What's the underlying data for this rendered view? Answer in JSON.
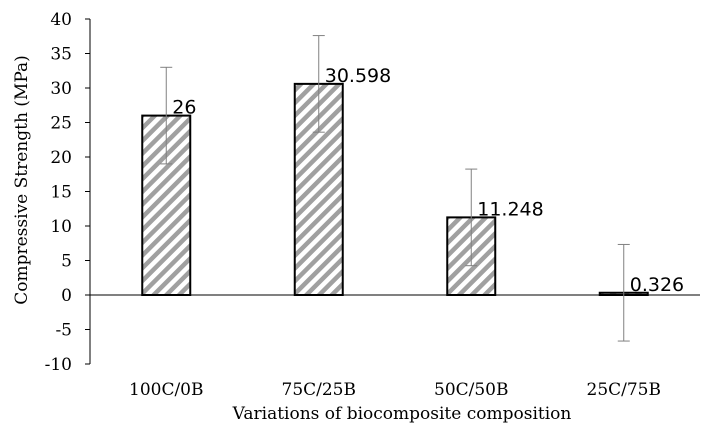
{
  "chart_data": {
    "type": "bar",
    "xlabel": "Variations of biocomposite composition",
    "ylabel": "Compressive Strength (MPa)",
    "ylim": [
      -10,
      40
    ],
    "yticks": [
      -10,
      -5,
      0,
      5,
      10,
      15,
      20,
      25,
      30,
      35,
      40
    ],
    "ytick_labels": [
      "-10",
      "-5",
      "0",
      "5",
      "10",
      "15",
      "20",
      "25",
      "30",
      "35",
      "40"
    ],
    "categories": [
      "100C/0B",
      "75C/25B",
      "50C/50B",
      "25C/75B"
    ],
    "values": [
      26,
      30.598,
      11.248,
      0.326
    ],
    "data_labels": [
      "26",
      "30.598",
      "11.248",
      "0.326"
    ],
    "error_bars": [
      7,
      7,
      7,
      7
    ],
    "grid": false,
    "legend": "none",
    "bar_fill": "diagonal-hatch",
    "colors": {
      "bar_stroke": "#000000",
      "hatch": "#a0a0a0",
      "axis": "#000000",
      "error_bar": "#808080"
    }
  }
}
